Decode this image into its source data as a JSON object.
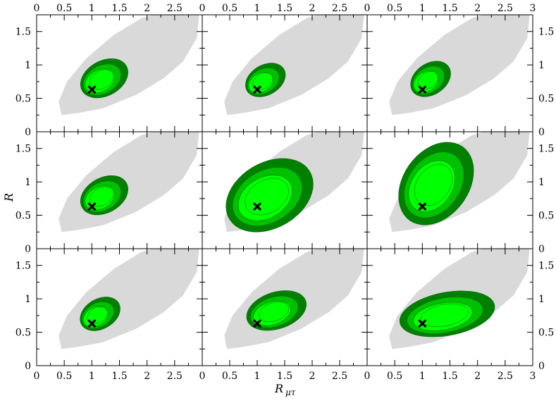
{
  "chart_data": {
    "type": "contour-grid",
    "rows": 3,
    "cols": 3,
    "x_range": [
      0,
      3
    ],
    "y_range": [
      0,
      1.75
    ],
    "x_ticks": [
      0,
      0.5,
      1,
      1.5,
      2,
      2.5,
      3
    ],
    "x_tick_labels_left_columns": [
      "0",
      "0.5",
      "1",
      "1.5",
      "2",
      "2.5",
      ""
    ],
    "x_tick_labels_right_column": [
      "0",
      "0.5",
      "1",
      "1.5",
      "2",
      "2.5",
      "3"
    ],
    "y_ticks": [
      0,
      0.5,
      1,
      1.5
    ],
    "y_tick_labels": [
      "0",
      "0.5",
      "1",
      "1.5"
    ],
    "xlabel_main": "R",
    "xlabel_sub": "μτ",
    "ylabel": "R",
    "best_fit_point": {
      "x": 1.0,
      "y": 0.63,
      "marker": "×"
    },
    "colors": {
      "background_region": "#d9d9d9",
      "outer_contour": "#008000",
      "middle_contour": "#00c000",
      "inner_contour": "#00ff00",
      "contour_line": "#006400",
      "marker": "#000000"
    },
    "panels": [
      {
        "id": "r1c1",
        "row": 0,
        "col": 0,
        "outer_extent": {
          "x": [
            0.75,
            1.7
          ],
          "y": [
            0.48,
            1.12
          ]
        }
      },
      {
        "id": "r1c2",
        "row": 0,
        "col": 1,
        "outer_extent": {
          "x": [
            0.75,
            1.55
          ],
          "y": [
            0.5,
            1.05
          ]
        }
      },
      {
        "id": "r1c3",
        "row": 0,
        "col": 2,
        "outer_extent": {
          "x": [
            0.75,
            1.55
          ],
          "y": [
            0.5,
            1.08
          ]
        }
      },
      {
        "id": "r2c1",
        "row": 1,
        "col": 0,
        "outer_extent": {
          "x": [
            0.75,
            1.7
          ],
          "y": [
            0.48,
            1.12
          ]
        }
      },
      {
        "id": "r2c2",
        "row": 1,
        "col": 1,
        "outer_extent": {
          "x": [
            0.35,
            2.1
          ],
          "y": [
            0.2,
            1.4
          ]
        }
      },
      {
        "id": "r2c3",
        "row": 1,
        "col": 2,
        "outer_extent": {
          "x": [
            0.5,
            2.0
          ],
          "y": [
            0.3,
            1.65
          ]
        }
      },
      {
        "id": "r3c1",
        "row": 2,
        "col": 0,
        "outer_extent": {
          "x": [
            0.75,
            1.55
          ],
          "y": [
            0.5,
            1.05
          ]
        }
      },
      {
        "id": "r3c2",
        "row": 2,
        "col": 1,
        "outer_extent": {
          "x": [
            0.75,
            1.95
          ],
          "y": [
            0.5,
            1.15
          ]
        }
      },
      {
        "id": "r3c3",
        "row": 2,
        "col": 2,
        "outer_extent": {
          "x": [
            0.5,
            2.4
          ],
          "y": [
            0.4,
            1.15
          ]
        }
      }
    ]
  }
}
